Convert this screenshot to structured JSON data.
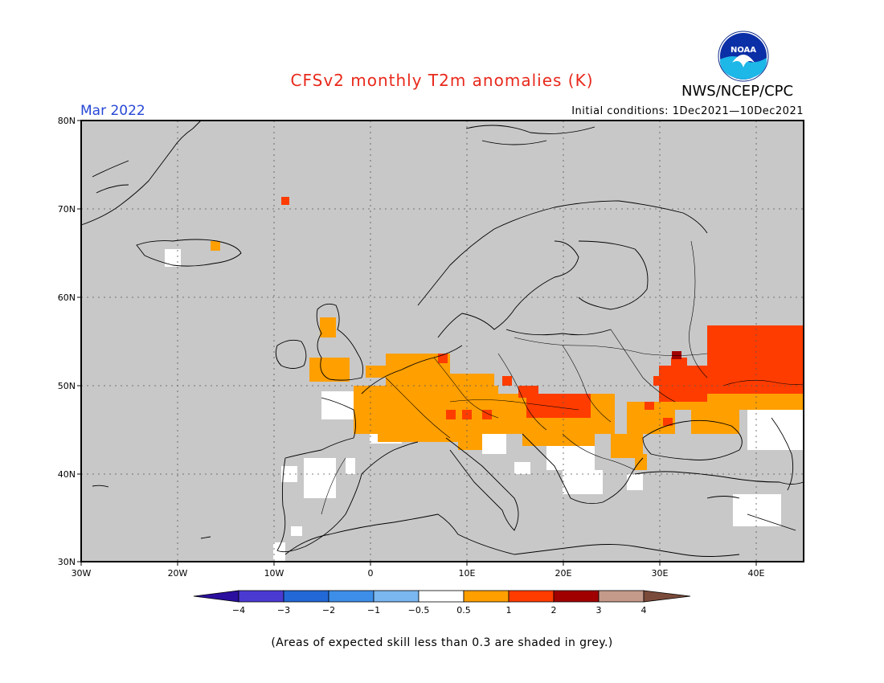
{
  "header": {
    "title": "CFSv2 monthly T2m anomalies (K)",
    "month": "Mar 2022",
    "initial_conditions": "Initial conditions: 1Dec2021—10Dec2021",
    "agency": "NWS/NCEP/CPC",
    "logo_text": "NOAA"
  },
  "map": {
    "lon_range": [
      -30,
      45
    ],
    "lat_range": [
      30,
      80
    ],
    "lat_labels": [
      "80N",
      "70N",
      "60N",
      "50N",
      "40N",
      "30N"
    ],
    "lon_labels": [
      "30W",
      "20W",
      "10W",
      "0",
      "10E",
      "20E",
      "30E",
      "40E"
    ],
    "land_color": "#c8c8c8",
    "grid": "dotted"
  },
  "colorbar": {
    "labels": [
      "−4",
      "−3",
      "−2",
      "−1",
      "−0.5",
      "0.5",
      "1",
      "2",
      "3",
      "4"
    ],
    "colors": [
      "#2b0f9e",
      "#4a3ad2",
      "#2268d6",
      "#3d8ee8",
      "#7ab6ef",
      "#ffffff",
      "#ff9f00",
      "#ff3c00",
      "#a10000",
      "#c49a8a",
      "#7a4a3a"
    ]
  },
  "footer": {
    "note": "(Areas of expected skill less than 0.3 are shaded in grey.)"
  }
}
